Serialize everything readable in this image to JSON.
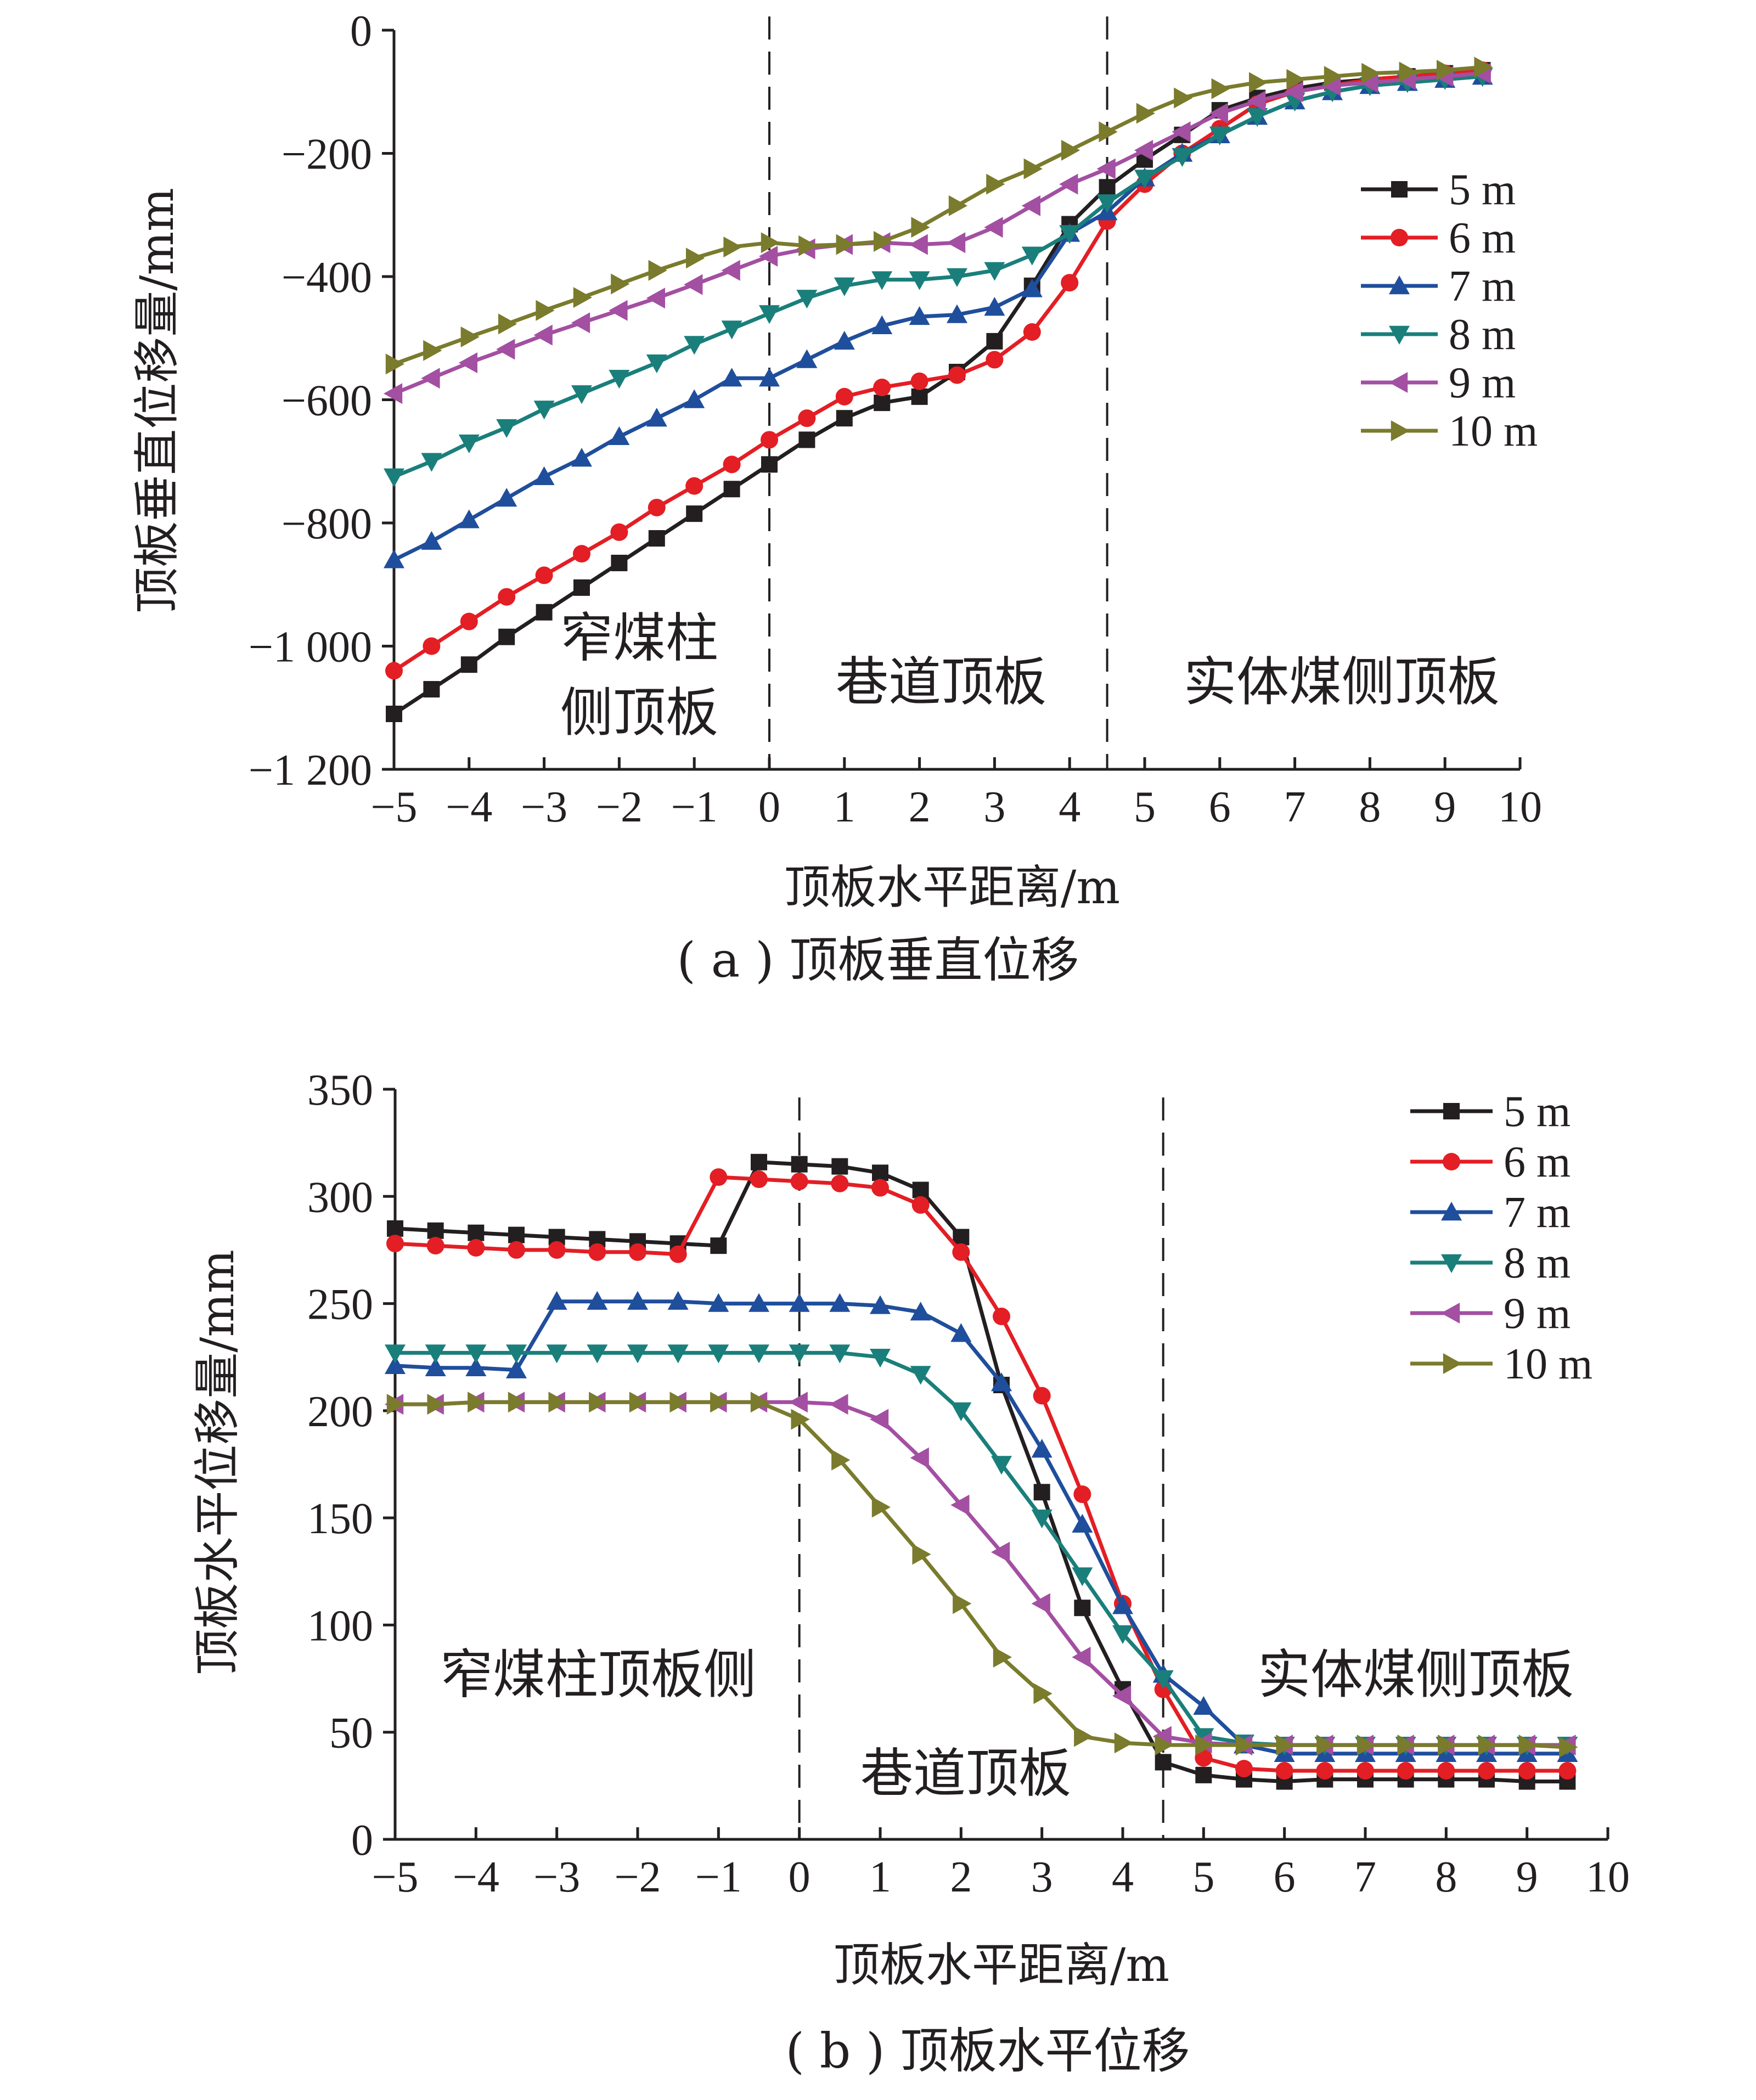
{
  "chart_data": [
    {
      "type": "line",
      "caption": "( a ) 顶板垂直位移",
      "xlabel": "顶板水平距离/m",
      "ylabel": "顶板垂直位移量/mm",
      "xlim": [
        -5,
        10
      ],
      "ylim": [
        -1200,
        0
      ],
      "xticks": [
        -5,
        -4,
        -3,
        -2,
        -1,
        0,
        1,
        2,
        3,
        4,
        5,
        6,
        7,
        8,
        9,
        10
      ],
      "xtick_labels": [
        "−5",
        "−4",
        "−3",
        "−2",
        "−1",
        "0",
        "1",
        "2",
        "3",
        "4",
        "5",
        "6",
        "7",
        "8",
        "9",
        "10"
      ],
      "yticks": [
        0,
        -200,
        -400,
        -600,
        -800,
        -1000,
        -1200
      ],
      "ytick_labels": [
        "0",
        "−200",
        "−400",
        "−600",
        "−800",
        "−1 000",
        "−1 200"
      ],
      "dividers": [
        0,
        4.5
      ],
      "regions": [
        {
          "lines": [
            "窄煤柱",
            "侧顶板"
          ]
        },
        {
          "lines": [
            "巷道顶板"
          ]
        },
        {
          "lines": [
            "实体煤侧顶板"
          ]
        }
      ],
      "legend_position": "right",
      "x": [
        -5,
        -4.5,
        -4,
        -3.5,
        -3,
        -2.5,
        -2,
        -1.5,
        -1,
        -0.5,
        0,
        0.5,
        1,
        1.5,
        2,
        2.5,
        3,
        3.5,
        4,
        4.5,
        5,
        5.5,
        6,
        6.5,
        7,
        7.5,
        8,
        8.5,
        9,
        9.5
      ],
      "series": [
        {
          "name": "5 m",
          "color": "#231f20",
          "marker": "square",
          "values": [
            -1110,
            -1070,
            -1030,
            -985,
            -945,
            -905,
            -865,
            -825,
            -785,
            -745,
            -705,
            -665,
            -630,
            -605,
            -595,
            -555,
            -505,
            -415,
            -315,
            -255,
            -210,
            -170,
            -130,
            -110,
            -95,
            -85,
            -80,
            -75,
            -70,
            -65
          ]
        },
        {
          "name": "6 m",
          "color": "#e31e24",
          "marker": "circle",
          "values": [
            -1040,
            -1000,
            -960,
            -920,
            -885,
            -850,
            -815,
            -775,
            -740,
            -705,
            -665,
            -630,
            -595,
            -580,
            -570,
            -560,
            -535,
            -490,
            -410,
            -310,
            -250,
            -200,
            -160,
            -120,
            -100,
            -90,
            -80,
            -75,
            -70,
            -65
          ]
        },
        {
          "name": "7 m",
          "color": "#1f4e9c",
          "marker": "triangle-up",
          "values": [
            -860,
            -830,
            -795,
            -760,
            -725,
            -695,
            -660,
            -630,
            -600,
            -565,
            -565,
            -535,
            -505,
            -480,
            -465,
            -462,
            -450,
            -420,
            -330,
            -295,
            -240,
            -200,
            -170,
            -140,
            -115,
            -100,
            -90,
            -85,
            -80,
            -75
          ]
        },
        {
          "name": "8 m",
          "color": "#1a7f7b",
          "marker": "triangle-down",
          "values": [
            -725,
            -700,
            -670,
            -645,
            -615,
            -590,
            -565,
            -540,
            -510,
            -485,
            -460,
            -435,
            -415,
            -405,
            -405,
            -400,
            -390,
            -365,
            -330,
            -280,
            -240,
            -205,
            -170,
            -140,
            -115,
            -100,
            -90,
            -85,
            -80,
            -75
          ]
        },
        {
          "name": "9 m",
          "color": "#a34fa2",
          "marker": "triangle-left",
          "values": [
            -590,
            -565,
            -540,
            -518,
            -495,
            -475,
            -455,
            -435,
            -413,
            -390,
            -367,
            -355,
            -348,
            -345,
            -348,
            -345,
            -320,
            -285,
            -250,
            -225,
            -195,
            -165,
            -135,
            -115,
            -100,
            -90,
            -85,
            -80,
            -75,
            -70
          ]
        },
        {
          "name": "10 m",
          "color": "#7a7b2c",
          "marker": "triangle-right",
          "values": [
            -542,
            -520,
            -498,
            -477,
            -455,
            -434,
            -412,
            -390,
            -370,
            -352,
            -345,
            -350,
            -348,
            -343,
            -320,
            -285,
            -250,
            -225,
            -195,
            -165,
            -135,
            -110,
            -95,
            -85,
            -80,
            -75,
            -70,
            -68,
            -65,
            -60
          ]
        }
      ]
    },
    {
      "type": "line",
      "caption": "( b ) 顶板水平位移",
      "xlabel": "顶板水平距离/m",
      "ylabel": "顶板水平位移量/mm",
      "xlim": [
        -5,
        10
      ],
      "ylim": [
        0,
        350
      ],
      "xticks": [
        -5,
        -4,
        -3,
        -2,
        -1,
        0,
        1,
        2,
        3,
        4,
        5,
        6,
        7,
        8,
        9,
        10
      ],
      "xtick_labels": [
        "−5",
        "−4",
        "−3",
        "−2",
        "−1",
        "0",
        "1",
        "2",
        "3",
        "4",
        "5",
        "6",
        "7",
        "8",
        "9",
        "10"
      ],
      "yticks": [
        0,
        50,
        100,
        150,
        200,
        250,
        300,
        350
      ],
      "ytick_labels": [
        "0",
        "50",
        "100",
        "150",
        "200",
        "250",
        "300",
        "350"
      ],
      "dividers": [
        0,
        4.5
      ],
      "regions": [
        {
          "lines": [
            "窄煤柱顶板侧"
          ]
        },
        {
          "lines": [
            "巷道顶板"
          ]
        },
        {
          "lines": [
            "实体煤侧顶板"
          ]
        }
      ],
      "legend_position": "top-right",
      "x": [
        -5,
        -4.5,
        -4,
        -3.5,
        -3,
        -2.5,
        -2,
        -1.5,
        -1,
        -0.5,
        0,
        0.5,
        1,
        1.5,
        2,
        2.5,
        3,
        3.5,
        4,
        4.5,
        5,
        5.5,
        6,
        6.5,
        7,
        7.5,
        8,
        8.5,
        9,
        9.5
      ],
      "series": [
        {
          "name": "5 m",
          "color": "#231f20",
          "marker": "square",
          "values": [
            285,
            284,
            283,
            282,
            281,
            280,
            279,
            278,
            277,
            316,
            315,
            314,
            311,
            303,
            281,
            212,
            162,
            108,
            70,
            36,
            30,
            28,
            27,
            28,
            28,
            28,
            28,
            28,
            27,
            27
          ]
        },
        {
          "name": "6 m",
          "color": "#e31e24",
          "marker": "circle",
          "values": [
            278,
            277,
            276,
            275,
            275,
            274,
            274,
            273,
            309,
            308,
            307,
            306,
            304,
            296,
            274,
            244,
            207,
            161,
            110,
            70,
            38,
            33,
            32,
            32,
            32,
            32,
            32,
            32,
            32,
            32
          ]
        },
        {
          "name": "7 m",
          "color": "#1f4e9c",
          "marker": "triangle-up",
          "values": [
            221,
            220,
            220,
            219,
            251,
            251,
            251,
            251,
            250,
            250,
            250,
            250,
            249,
            246,
            236,
            213,
            182,
            147,
            109,
            77,
            62,
            44,
            40,
            40,
            40,
            40,
            40,
            40,
            40,
            40
          ]
        },
        {
          "name": "8 m",
          "color": "#1a7f7b",
          "marker": "triangle-down",
          "values": [
            227,
            227,
            227,
            227,
            227,
            227,
            227,
            227,
            227,
            227,
            227,
            227,
            225,
            217,
            200,
            175,
            150,
            123,
            96,
            75,
            48,
            45,
            44,
            44,
            44,
            44,
            44,
            44,
            44,
            44
          ]
        },
        {
          "name": "9 m",
          "color": "#a34fa2",
          "marker": "triangle-left",
          "values": [
            203,
            203,
            204,
            204,
            204,
            204,
            204,
            204,
            204,
            204,
            204,
            203,
            196,
            178,
            156,
            134,
            110,
            85,
            67,
            48,
            45,
            44,
            44,
            44,
            44,
            44,
            44,
            44,
            44,
            44
          ]
        },
        {
          "name": "10 m",
          "color": "#7a7b2c",
          "marker": "triangle-right",
          "values": [
            203,
            203,
            204,
            204,
            204,
            204,
            204,
            204,
            204,
            204,
            196,
            177,
            155,
            133,
            110,
            85,
            68,
            48,
            45,
            44,
            44,
            44,
            44,
            44,
            44,
            44,
            44,
            44,
            44,
            43
          ]
        }
      ]
    }
  ]
}
